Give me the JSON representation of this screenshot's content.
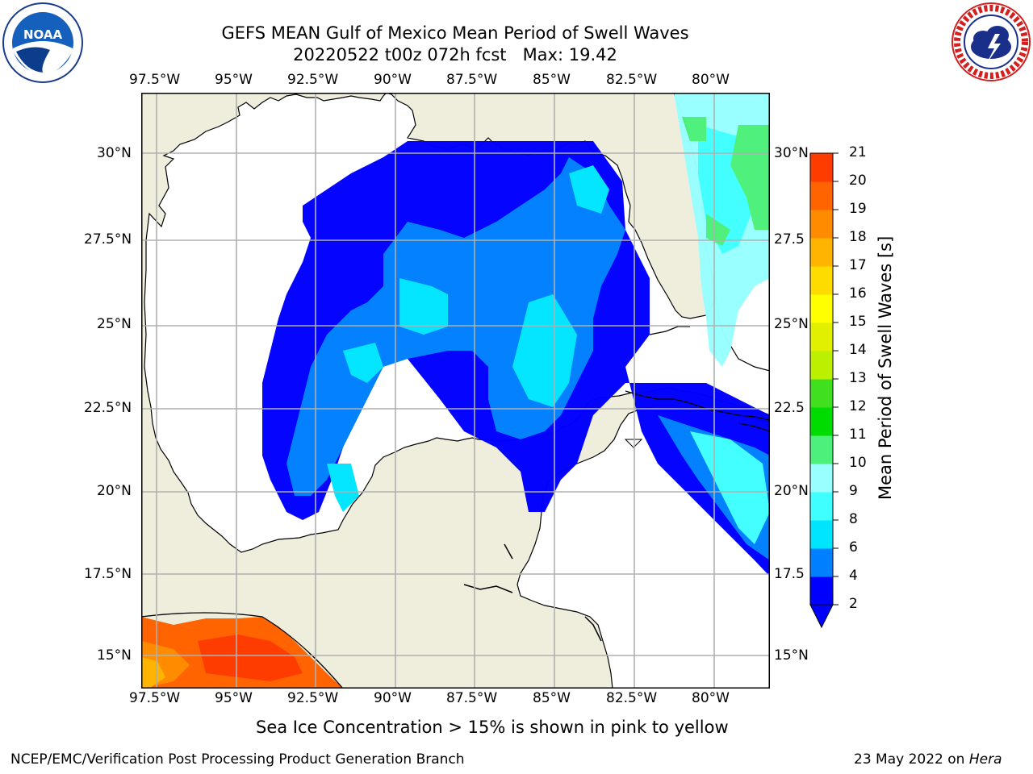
{
  "header": {
    "title_line1": "GEFS MEAN Gulf of Mexico Mean Period of Swell Waves",
    "title_line2": "20220522 t00z 072h fcst   Max: 19.42"
  },
  "logos": {
    "left": "noaa-logo",
    "right": "national-weather-service-logo"
  },
  "map": {
    "lon_ticks_top": [
      "97.5°W",
      "95°W",
      "92.5°W",
      "90°W",
      "87.5°W",
      "85°W",
      "82.5°W",
      "80°W"
    ],
    "lon_ticks_bottom": [
      "97.5°W",
      "95°W",
      "92.5°W",
      "90°W",
      "87.5°W",
      "85°W",
      "82.5°W",
      "80°W"
    ],
    "lat_ticks_left": [
      "30°N",
      "27.5°N",
      "25°N",
      "22.5°N",
      "20°N",
      "17.5°N",
      "15°N"
    ],
    "lat_ticks_right": [
      "30°N",
      "27.5",
      "25°N",
      "22.5",
      "20°N",
      "17.5",
      "15°N"
    ],
    "colors": {
      "land": "#efeedd",
      "ocean": "#ffffff",
      "grid": "#b0b0b0",
      "coast": "#000000"
    }
  },
  "colorbar": {
    "label": "Mean Period of Swell Waves [s]",
    "ticks": [
      "2",
      "4",
      "6",
      "8",
      "9",
      "10",
      "11",
      "12",
      "13",
      "14",
      "15",
      "16",
      "17",
      "18",
      "19",
      "20",
      "21"
    ],
    "colors": [
      "#0000ff",
      "#007fff",
      "#00e5ff",
      "#40ffff",
      "#99ffff",
      "#4cf07a",
      "#00dc00",
      "#40e020",
      "#bcf000",
      "#e0f000",
      "#ffff00",
      "#ffdc00",
      "#ffb400",
      "#ff8c00",
      "#ff6400",
      "#ff3c00",
      "#ff0000"
    ],
    "under_color": "#0000ff"
  },
  "caption": "Sea Ice Concentration > 15% is shown in pink to yellow",
  "footer": {
    "left": "NCEP/EMC/Verification Post Processing Product Generation Branch",
    "right_prefix": "23 May 2022 on ",
    "right_italic": "Hera"
  }
}
